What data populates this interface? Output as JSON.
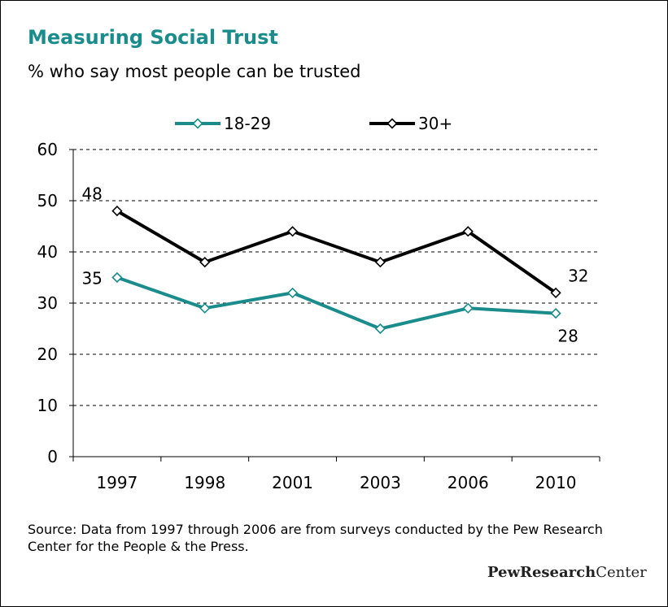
{
  "chart_data": {
    "type": "line",
    "title": "Measuring Social Trust",
    "subtitle": "% who say most people can be trusted",
    "categories": [
      "1997",
      "1998",
      "2001",
      "2003",
      "2006",
      "2010"
    ],
    "series": [
      {
        "name": "18-29",
        "color": "#1a8c8c",
        "values": [
          35,
          29,
          32,
          25,
          29,
          28
        ]
      },
      {
        "name": "30+",
        "color": "#000000",
        "values": [
          48,
          38,
          44,
          38,
          44,
          32
        ]
      }
    ],
    "ylim": [
      0,
      60
    ],
    "yticks": [
      0,
      10,
      20,
      30,
      40,
      50,
      60
    ],
    "grid": true,
    "legend_position": "top",
    "data_labels": [
      {
        "series": "30+",
        "category": "1997",
        "text": "48"
      },
      {
        "series": "18-29",
        "category": "1997",
        "text": "35"
      },
      {
        "series": "30+",
        "category": "2010",
        "text": "32"
      },
      {
        "series": "18-29",
        "category": "2010",
        "text": "28"
      }
    ]
  },
  "source_text": "Source: Data from 1997 through 2006 are from surveys conducted by the Pew Research Center for the People & the Press.",
  "logo": {
    "bold_part": "PewResearch",
    "regular_part": "Center"
  }
}
